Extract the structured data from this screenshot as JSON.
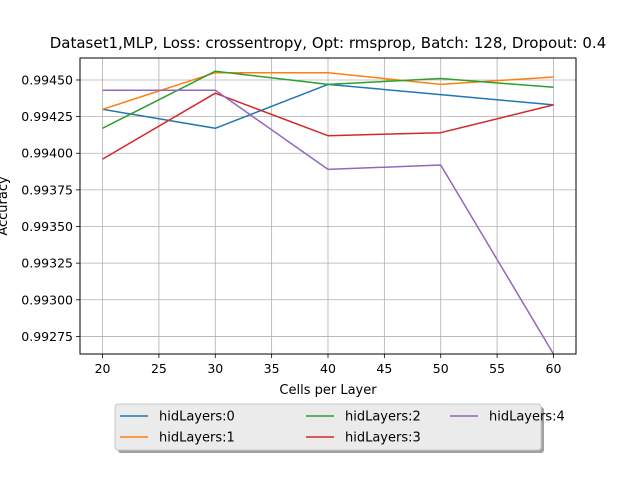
{
  "chart_data": {
    "type": "line",
    "title": "Dataset1,MLP, Loss: crossentropy, Opt: rmsprop, Batch: 128, Dropout: 0.4",
    "xlabel": "Cells per Layer",
    "ylabel": "Accuracy",
    "x": [
      20,
      30,
      40,
      50,
      60
    ],
    "xlim": [
      18,
      62
    ],
    "ylim": [
      0.99263,
      0.99465
    ],
    "xticks": [
      20,
      25,
      30,
      35,
      40,
      45,
      50,
      55,
      60
    ],
    "yticks": [
      0.99275,
      0.993,
      0.99325,
      0.9935,
      0.99375,
      0.994,
      0.99425,
      0.9945
    ],
    "ytick_labels": [
      "0.99275",
      "0.99300",
      "0.99325",
      "0.99350",
      "0.99375",
      "0.99400",
      "0.99425",
      "0.99450"
    ],
    "grid": true,
    "legend_placement": "below",
    "legend_columns": 3,
    "series": [
      {
        "name": "hidLayers:0",
        "color": "#1f77b4",
        "values": [
          0.9943,
          0.99417,
          0.99447,
          0.9944,
          0.99433
        ]
      },
      {
        "name": "hidLayers:1",
        "color": "#ff7f0e",
        "values": [
          0.9943,
          0.99455,
          0.99455,
          0.99447,
          0.99452
        ]
      },
      {
        "name": "hidLayers:2",
        "color": "#2ca02c",
        "values": [
          0.99417,
          0.99456,
          0.99447,
          0.99451,
          0.99445
        ]
      },
      {
        "name": "hidLayers:3",
        "color": "#d62728",
        "values": [
          0.99396,
          0.99441,
          0.99412,
          0.99414,
          0.99433
        ]
      },
      {
        "name": "hidLayers:4",
        "color": "#9467bd",
        "values": [
          0.99443,
          0.99443,
          0.99389,
          0.99392,
          0.99263
        ]
      }
    ]
  }
}
